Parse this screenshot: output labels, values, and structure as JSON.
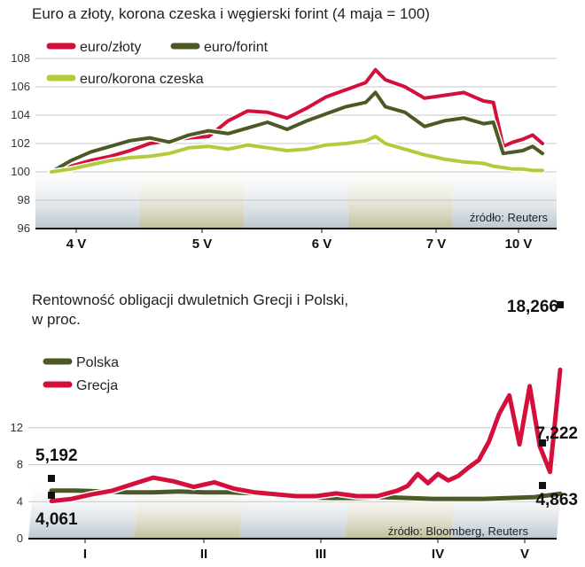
{
  "colors": {
    "red": "#d40f3c",
    "olive": "#4b5a24",
    "lightgreen": "#b6c93a",
    "band": "#b7c3cc",
    "bandAlt": "#bdbb94"
  },
  "chart_data": [
    {
      "type": "line",
      "title": "Euro a złoty, korona czeska i węgierski forint (4 maja = 100)",
      "x_categories": [
        "4 V",
        "5 V",
        "6 V",
        "7 V",
        "10 V"
      ],
      "y_ticks": [
        "108",
        "106",
        "104",
        "102",
        "100",
        "98",
        "96"
      ],
      "ylim": [
        96,
        108.5
      ],
      "source": "źródło: Reuters",
      "series": [
        {
          "name": "euro/złoty",
          "color": "#d40f3c",
          "x": [
            0,
            0.04,
            0.08,
            0.12,
            0.16,
            0.2,
            0.24,
            0.28,
            0.32,
            0.36,
            0.4,
            0.44,
            0.48,
            0.52,
            0.56,
            0.6,
            0.64,
            0.66,
            0.68,
            0.72,
            0.76,
            0.8,
            0.84,
            0.88,
            0.9,
            0.92,
            0.94,
            0.96,
            0.98,
            1.0
          ],
          "y": [
            100,
            100.4,
            100.8,
            101.1,
            101.5,
            102.0,
            102.2,
            102.4,
            102.5,
            103.6,
            104.3,
            104.2,
            103.8,
            104.5,
            105.3,
            105.8,
            106.3,
            107.2,
            106.5,
            106.0,
            105.2,
            105.4,
            105.6,
            105.0,
            104.9,
            101.8,
            102.1,
            102.3,
            102.6,
            102.0
          ]
        },
        {
          "name": "euro/forint",
          "color": "#4b5a24",
          "x": [
            0,
            0.04,
            0.08,
            0.12,
            0.16,
            0.2,
            0.24,
            0.28,
            0.32,
            0.36,
            0.4,
            0.44,
            0.48,
            0.52,
            0.56,
            0.6,
            0.64,
            0.66,
            0.68,
            0.72,
            0.76,
            0.8,
            0.84,
            0.88,
            0.9,
            0.92,
            0.94,
            0.96,
            0.98,
            1.0
          ],
          "y": [
            100,
            100.8,
            101.4,
            101.8,
            102.2,
            102.4,
            102.1,
            102.6,
            102.9,
            102.7,
            103.1,
            103.5,
            103.0,
            103.6,
            104.1,
            104.6,
            104.9,
            105.6,
            104.6,
            104.2,
            103.2,
            103.6,
            103.8,
            103.4,
            103.5,
            101.3,
            101.4,
            101.5,
            101.8,
            101.3
          ]
        },
        {
          "name": "euro/korona czeska",
          "color": "#b6c93a",
          "x": [
            0,
            0.04,
            0.08,
            0.12,
            0.16,
            0.2,
            0.24,
            0.28,
            0.32,
            0.36,
            0.4,
            0.44,
            0.48,
            0.52,
            0.56,
            0.6,
            0.64,
            0.66,
            0.68,
            0.72,
            0.76,
            0.8,
            0.84,
            0.88,
            0.9,
            0.92,
            0.94,
            0.96,
            0.98,
            1.0
          ],
          "y": [
            100,
            100.2,
            100.5,
            100.8,
            101.0,
            101.1,
            101.3,
            101.7,
            101.8,
            101.6,
            101.9,
            101.7,
            101.5,
            101.6,
            101.9,
            102.0,
            102.2,
            102.5,
            102.0,
            101.6,
            101.2,
            100.9,
            100.7,
            100.6,
            100.4,
            100.3,
            100.2,
            100.2,
            100.1,
            100.1
          ]
        }
      ]
    },
    {
      "type": "line",
      "title": "Rentowność obligacji dwuletnich Grecji i Polski,",
      "title_line2": "w proc.",
      "x_categories": [
        "I",
        "II",
        "III",
        "IV",
        "V"
      ],
      "y_ticks": [
        "12",
        "8",
        "4",
        "0"
      ],
      "ylim": [
        0,
        18.5
      ],
      "source": "źródło: Bloomberg, Reuters",
      "annotations": [
        "5,192",
        "4,061",
        "18,266",
        "7,222",
        "4,863"
      ],
      "series": [
        {
          "name": "Polska",
          "color": "#4b5a24",
          "x": [
            0,
            0.05,
            0.1,
            0.15,
            0.2,
            0.25,
            0.3,
            0.35,
            0.4,
            0.45,
            0.5,
            0.55,
            0.6,
            0.65,
            0.7,
            0.75,
            0.8,
            0.85,
            0.9,
            0.95,
            1.0
          ],
          "y": [
            5.192,
            5.2,
            5.1,
            5.0,
            5.0,
            5.1,
            5.0,
            5.0,
            4.9,
            4.7,
            4.5,
            4.4,
            4.4,
            4.5,
            4.4,
            4.3,
            4.3,
            4.3,
            4.4,
            4.5,
            4.863
          ]
        },
        {
          "name": "Grecja",
          "color": "#d40f3c",
          "x": [
            0,
            0.04,
            0.08,
            0.12,
            0.16,
            0.2,
            0.24,
            0.28,
            0.32,
            0.36,
            0.4,
            0.44,
            0.48,
            0.52,
            0.56,
            0.6,
            0.64,
            0.68,
            0.7,
            0.72,
            0.74,
            0.76,
            0.78,
            0.8,
            0.82,
            0.84,
            0.86,
            0.88,
            0.9,
            0.92,
            0.94,
            0.96,
            0.98,
            1.0
          ],
          "y": [
            4.061,
            4.3,
            4.8,
            5.2,
            5.9,
            6.6,
            6.2,
            5.6,
            6.1,
            5.4,
            5.0,
            4.8,
            4.6,
            4.6,
            4.9,
            4.6,
            4.6,
            5.2,
            5.7,
            7.0,
            6.0,
            7.0,
            6.3,
            6.8,
            7.7,
            8.5,
            10.5,
            13.5,
            15.5,
            10.2,
            16.5,
            10.0,
            7.222,
            18.266
          ]
        }
      ]
    }
  ]
}
